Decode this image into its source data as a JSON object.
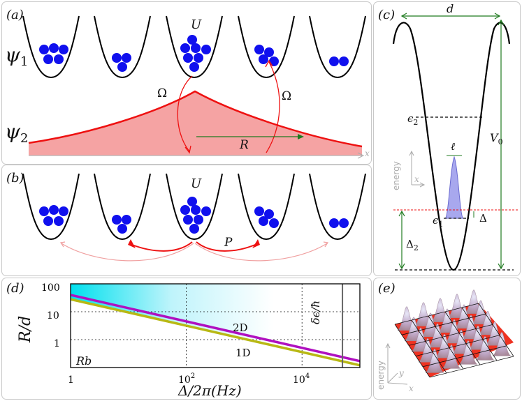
{
  "panels": {
    "a": {
      "label": "(a)",
      "psi1_sym": "ψ",
      "psi1_sub": "1",
      "psi2_sym": "ψ",
      "psi2_sub": "2",
      "U": "U",
      "omega_left": "Ω",
      "omega_right": "Ω",
      "R": "R",
      "x": "x"
    },
    "b": {
      "label": "(b)",
      "U": "U",
      "P": "P"
    },
    "c": {
      "label": "(c)",
      "d": "d",
      "eps2_sym": "ϵ",
      "eps2_sub": "2",
      "V0_sym": "V",
      "V0_sub": "0",
      "ell": "ℓ",
      "energy": "energy",
      "x": "x",
      "eps1_sym": "ϵ",
      "eps1_sub": "1",
      "Delta": "Δ",
      "Delta2_sym": "Δ",
      "Delta2_sub": "2"
    },
    "d": {
      "label": "(d)",
      "ylabel": "R/d",
      "xlabel": "Δ/2π(Hz)",
      "element": "Rb",
      "right_label": "δϵ/ħ",
      "yticks": [
        "100",
        "10",
        "1"
      ],
      "xticks": [
        "1",
        "10",
        "10"
      ],
      "xtick_exp": [
        "",
        "2",
        "4"
      ]
    },
    "e": {
      "label": "(e)",
      "energy": "energy",
      "y": "y",
      "x": "x"
    }
  },
  "colors": {
    "atom": "#1010ee",
    "psi2_fill": "#f5a3a3",
    "psi2_line": "#ee1111",
    "line_2D": "#b010c0",
    "line_1D": "#b8b814",
    "grid": "#111111"
  },
  "chart_data": {
    "type": "line",
    "xscale": "log",
    "yscale": "log",
    "xlim": [
      1,
      100000
    ],
    "ylim": [
      0.1,
      100
    ],
    "xlabel": "Δ/2π(Hz)",
    "ylabel": "R/d",
    "annotations": [
      "Rb",
      "δϵ/ħ"
    ],
    "vline_x": 50000,
    "series": [
      {
        "name": "2D",
        "x": [
          1,
          100000
        ],
        "y": [
          40,
          0.17
        ]
      },
      {
        "name": "1D",
        "x": [
          1,
          100000
        ],
        "y": [
          28,
          0.12
        ]
      }
    ]
  }
}
